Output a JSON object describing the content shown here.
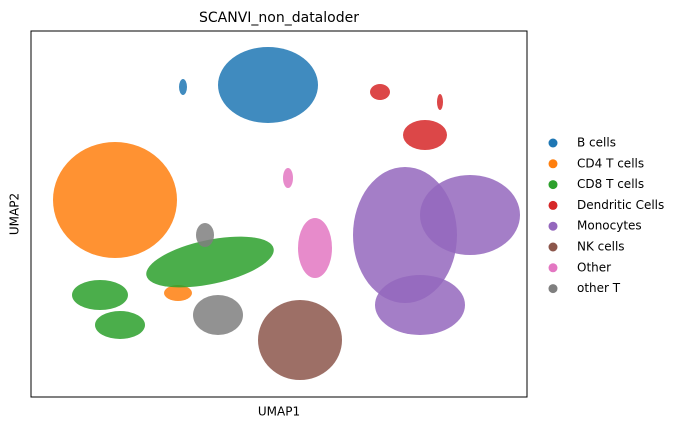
{
  "chart_data": {
    "type": "scatter",
    "title": "SCANVI_non_dataloder",
    "x_label": "UMAP1",
    "y_label": "UMAP2",
    "legend_position": "right",
    "series": [
      {
        "name": "B cells",
        "color": "#1f77b4"
      },
      {
        "name": "CD4 T cells",
        "color": "#ff7f0e"
      },
      {
        "name": "CD8 T cells",
        "color": "#2ca02c"
      },
      {
        "name": "Dendritic Cells",
        "color": "#d62728"
      },
      {
        "name": "Monocytes",
        "color": "#9467bd"
      },
      {
        "name": "NK cells",
        "color": "#8c564b"
      },
      {
        "name": "Other",
        "color": "#e377c2"
      },
      {
        "name": "other T",
        "color": "#7f7f7f"
      }
    ]
  }
}
